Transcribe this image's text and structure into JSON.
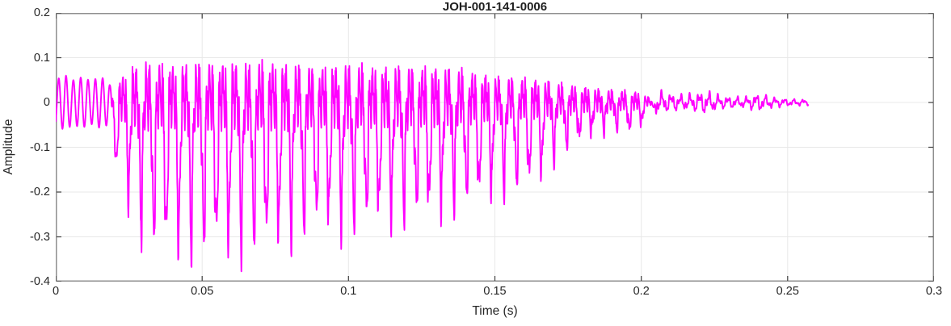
{
  "chart_data": {
    "type": "line",
    "title": "JOH-001-141-0006",
    "xlabel": "Time (s)",
    "ylabel": "Amplitude",
    "xlim": [
      0,
      0.3
    ],
    "ylim": [
      -0.4,
      0.2
    ],
    "xticks": [
      0,
      0.05,
      0.1,
      0.15,
      0.2,
      0.25,
      0.3
    ],
    "xtick_labels": [
      "0",
      "0.05",
      "0.1",
      "0.15",
      "0.2",
      "0.25",
      "0.3"
    ],
    "yticks": [
      0.2,
      0.1,
      0,
      -0.1,
      -0.2,
      -0.3,
      -0.4
    ],
    "ytick_labels": [
      "0.2",
      "0.1",
      "0",
      "-0.1",
      "-0.2",
      "-0.3",
      "-0.4"
    ],
    "grid": true,
    "legend": "none",
    "line_color": "#ff00ff",
    "axis_color": "#8f8f8f",
    "grid_color": "#e8e8e8",
    "tick_color": "#444444",
    "text_color": "#262626",
    "title_color": "#1f1f1f",
    "signal": {
      "description": "Speech/audio waveform: quiet ~±0.05 oscillation 0-0.019 s, strong voiced segment 0.02-0.17 s (f0 ≈ 234 Hz, positive peaks ≈ +0.17, negative glottal spikes ≈ -0.36), decay 0.17-0.205 s, low-level tail ending ≈ 0.257 s",
      "t_start": 0,
      "t_end": 0.257,
      "dt": 0.0001,
      "pre": {
        "freq": 400,
        "phase": -1.0,
        "env": [
          [
            0,
            0.05
          ],
          [
            0.003,
            0.062
          ],
          [
            0.006,
            0.05
          ],
          [
            0.009,
            0.057
          ],
          [
            0.012,
            0.048
          ],
          [
            0.015,
            0.057
          ],
          [
            0.018,
            0.05
          ],
          [
            0.0202,
            0.0
          ]
        ]
      },
      "voiced": {
        "f0": 234,
        "t0": 0.0185,
        "spike_center_phase": 0.5,
        "spike_sigma": 0.11,
        "neg_ripple_factor": 0.35,
        "ripple_components": [
          {
            "f": 880,
            "a": 0.55,
            "p": 0.0
          },
          {
            "f": 1760,
            "a": 0.3,
            "p": 0.8
          },
          {
            "f": 2640,
            "a": 0.18,
            "p": 2.1
          },
          {
            "f": 3050,
            "a": 0.1,
            "p": 1.7
          }
        ],
        "pos_env": [
          [
            0.0185,
            0
          ],
          [
            0.02,
            0.07
          ],
          [
            0.023,
            0.12
          ],
          [
            0.027,
            0.155
          ],
          [
            0.032,
            0.17
          ],
          [
            0.04,
            0.16
          ],
          [
            0.048,
            0.165
          ],
          [
            0.055,
            0.175
          ],
          [
            0.065,
            0.165
          ],
          [
            0.072,
            0.175
          ],
          [
            0.08,
            0.16
          ],
          [
            0.09,
            0.155
          ],
          [
            0.1,
            0.16
          ],
          [
            0.11,
            0.15
          ],
          [
            0.12,
            0.155
          ],
          [
            0.13,
            0.15
          ],
          [
            0.137,
            0.14
          ],
          [
            0.145,
            0.12
          ],
          [
            0.152,
            0.11
          ],
          [
            0.158,
            0.105
          ],
          [
            0.163,
            0.1
          ],
          [
            0.168,
            0.09
          ],
          [
            0.172,
            0.08
          ],
          [
            0.18,
            0.065
          ],
          [
            0.188,
            0.055
          ],
          [
            0.195,
            0.05
          ],
          [
            0.2,
            0.042
          ],
          [
            0.205,
            0.0
          ]
        ],
        "neg_env": [
          [
            0.0185,
            0
          ],
          [
            0.0205,
            0.15
          ],
          [
            0.024,
            0.2
          ],
          [
            0.028,
            0.27
          ],
          [
            0.031,
            0.3
          ],
          [
            0.035,
            0.315
          ],
          [
            0.045,
            0.32
          ],
          [
            0.055,
            0.315
          ],
          [
            0.065,
            0.315
          ],
          [
            0.075,
            0.305
          ],
          [
            0.082,
            0.285
          ],
          [
            0.09,
            0.265
          ],
          [
            0.098,
            0.27
          ],
          [
            0.105,
            0.26
          ],
          [
            0.112,
            0.255
          ],
          [
            0.12,
            0.245
          ],
          [
            0.128,
            0.24
          ],
          [
            0.135,
            0.225
          ],
          [
            0.142,
            0.21
          ],
          [
            0.148,
            0.2
          ],
          [
            0.155,
            0.19
          ],
          [
            0.16,
            0.18
          ],
          [
            0.165,
            0.165
          ],
          [
            0.17,
            0.125
          ],
          [
            0.176,
            0.09
          ],
          [
            0.183,
            0.07
          ],
          [
            0.19,
            0.055
          ],
          [
            0.197,
            0.065
          ],
          [
            0.202,
            0.04
          ],
          [
            0.205,
            0.0
          ]
        ]
      },
      "tail": {
        "components": [
          {
            "f": 310,
            "a": 0.6,
            "p": 0.5
          },
          {
            "f": 730,
            "a": 0.35,
            "p": 1.3
          },
          {
            "f": 1450,
            "a": 0.25,
            "p": 2.2
          }
        ],
        "env": [
          [
            0.2045,
            0.0
          ],
          [
            0.205,
            0.028
          ],
          [
            0.21,
            0.02
          ],
          [
            0.215,
            0.017
          ],
          [
            0.222,
            0.026
          ],
          [
            0.228,
            0.014
          ],
          [
            0.235,
            0.012
          ],
          [
            0.24,
            0.02
          ],
          [
            0.245,
            0.012
          ],
          [
            0.25,
            0.008
          ],
          [
            0.2555,
            0.007
          ],
          [
            0.257,
            0.006
          ]
        ]
      }
    }
  }
}
